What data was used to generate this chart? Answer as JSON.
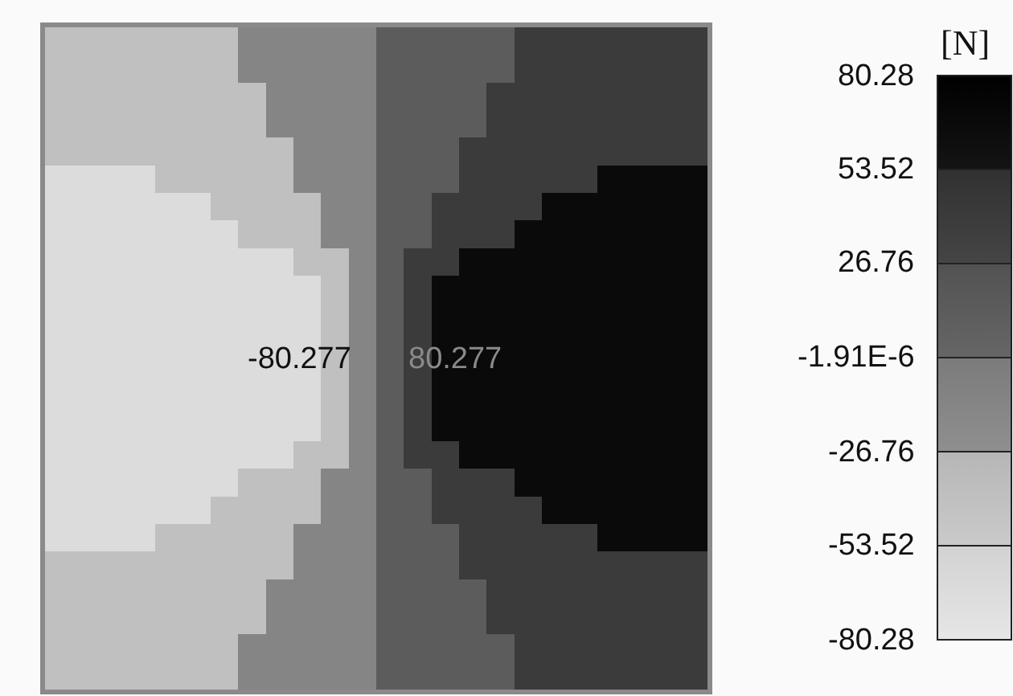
{
  "chart_data": {
    "type": "heatmap",
    "clabel": "[N]",
    "annotations": [
      "-80.277",
      "80.277"
    ],
    "categories": [
      null,
      null,
      null,
      null,
      null,
      null,
      null,
      null,
      null,
      null,
      null,
      null,
      null,
      null,
      null,
      null,
      null,
      null,
      null,
      null,
      null,
      null,
      null,
      null
    ],
    "y_categories": [
      null,
      null,
      null,
      null,
      null,
      null,
      null,
      null,
      null,
      null,
      null,
      null,
      null,
      null,
      null,
      null,
      null,
      null,
      null,
      null,
      null,
      null,
      null,
      null
    ],
    "tick_labels": false,
    "clim": [
      -80.28,
      80.28
    ],
    "cticks": [
      -80.28,
      -53.52,
      -26.76,
      {
        "value": -1.91e-06,
        "label": "-1.91E-6"
      },
      26.76,
      53.52,
      80.28
    ],
    "colors": [
      "#dcdcdc",
      "#c0c0c0",
      "#858585",
      "#5c5c5c",
      "#3b3b3b",
      "#000000"
    ],
    "cells": [
      [
        -40,
        -40,
        -40,
        -40,
        -40,
        -40,
        -40,
        -13,
        -13,
        -13,
        -13,
        -13,
        13,
        13,
        13,
        13,
        13,
        40,
        40,
        40,
        40,
        40,
        40,
        40
      ],
      [
        -40,
        -40,
        -40,
        -40,
        -40,
        -40,
        -40,
        -13,
        -13,
        -13,
        -13,
        -13,
        13,
        13,
        13,
        13,
        13,
        40,
        40,
        40,
        40,
        40,
        40,
        40
      ],
      [
        -40,
        -40,
        -40,
        -40,
        -40,
        -40,
        -40,
        -40,
        -13,
        -13,
        -13,
        -13,
        13,
        13,
        13,
        13,
        40,
        40,
        40,
        40,
        40,
        40,
        40,
        40
      ],
      [
        -40,
        -40,
        -40,
        -40,
        -40,
        -40,
        -40,
        -40,
        -13,
        -13,
        -13,
        -13,
        13,
        13,
        13,
        13,
        40,
        40,
        40,
        40,
        40,
        40,
        40,
        40
      ],
      [
        -40,
        -40,
        -40,
        -40,
        -40,
        -40,
        -40,
        -40,
        -40,
        -13,
        -13,
        -13,
        13,
        13,
        13,
        40,
        40,
        40,
        40,
        40,
        40,
        40,
        40,
        40
      ],
      [
        -67,
        -67,
        -67,
        -67,
        -40,
        -40,
        -40,
        -40,
        -40,
        -13,
        -13,
        -13,
        13,
        13,
        13,
        40,
        40,
        40,
        40,
        40,
        67,
        67,
        67,
        67
      ],
      [
        -67,
        -67,
        -67,
        -67,
        -67,
        -67,
        -40,
        -40,
        -40,
        -40,
        -13,
        -13,
        13,
        13,
        40,
        40,
        40,
        40,
        67,
        67,
        67,
        67,
        67,
        67
      ],
      [
        -67,
        -67,
        -67,
        -67,
        -67,
        -67,
        -67,
        -40,
        -40,
        -40,
        -13,
        -13,
        13,
        13,
        40,
        40,
        40,
        67,
        67,
        67,
        67,
        67,
        67,
        67
      ],
      [
        -67,
        -67,
        -67,
        -67,
        -67,
        -67,
        -67,
        -67,
        -67,
        -40,
        -40,
        -13,
        13,
        40,
        40,
        67,
        67,
        67,
        67,
        67,
        67,
        67,
        67,
        67
      ],
      [
        -67,
        -67,
        -67,
        -67,
        -67,
        -67,
        -67,
        -67,
        -67,
        -67,
        -40,
        -13,
        13,
        40,
        67,
        67,
        67,
        67,
        67,
        67,
        67,
        67,
        67,
        67
      ],
      [
        -67,
        -67,
        -67,
        -67,
        -67,
        -67,
        -67,
        -67,
        -67,
        -67,
        -40,
        -13,
        13,
        40,
        67,
        67,
        67,
        67,
        67,
        67,
        67,
        67,
        67,
        67
      ],
      [
        -67,
        -67,
        -67,
        -67,
        -67,
        -67,
        -67,
        -67,
        -67,
        -67,
        -40,
        -13,
        13,
        40,
        67,
        67,
        67,
        67,
        67,
        67,
        67,
        67,
        67,
        67
      ],
      [
        -67,
        -67,
        -67,
        -67,
        -67,
        -67,
        -67,
        -67,
        -67,
        -67,
        -40,
        -13,
        13,
        40,
        67,
        67,
        67,
        67,
        67,
        67,
        67,
        67,
        67,
        67
      ],
      [
        -67,
        -67,
        -67,
        -67,
        -67,
        -67,
        -67,
        -67,
        -67,
        -67,
        -40,
        -13,
        13,
        40,
        67,
        67,
        67,
        67,
        67,
        67,
        67,
        67,
        67,
        67
      ],
      [
        -67,
        -67,
        -67,
        -67,
        -67,
        -67,
        -67,
        -67,
        -67,
        -67,
        -40,
        -13,
        13,
        40,
        67,
        67,
        67,
        67,
        67,
        67,
        67,
        67,
        67,
        67
      ],
      [
        -67,
        -67,
        -67,
        -67,
        -67,
        -67,
        -67,
        -67,
        -67,
        -40,
        -40,
        -13,
        13,
        40,
        40,
        67,
        67,
        67,
        67,
        67,
        67,
        67,
        67,
        67
      ],
      [
        -67,
        -67,
        -67,
        -67,
        -67,
        -67,
        -67,
        -40,
        -40,
        -40,
        -13,
        -13,
        13,
        13,
        40,
        40,
        40,
        67,
        67,
        67,
        67,
        67,
        67,
        67
      ],
      [
        -67,
        -67,
        -67,
        -67,
        -67,
        -67,
        -40,
        -40,
        -40,
        -40,
        -13,
        -13,
        13,
        13,
        40,
        40,
        40,
        40,
        67,
        67,
        67,
        67,
        67,
        67
      ],
      [
        -67,
        -67,
        -67,
        -67,
        -40,
        -40,
        -40,
        -40,
        -40,
        -13,
        -13,
        -13,
        13,
        13,
        13,
        40,
        40,
        40,
        40,
        40,
        67,
        67,
        67,
        67
      ],
      [
        -40,
        -40,
        -40,
        -40,
        -40,
        -40,
        -40,
        -40,
        -40,
        -13,
        -13,
        -13,
        13,
        13,
        13,
        40,
        40,
        40,
        40,
        40,
        40,
        40,
        40,
        40
      ],
      [
        -40,
        -40,
        -40,
        -40,
        -40,
        -40,
        -40,
        -40,
        -13,
        -13,
        -13,
        -13,
        13,
        13,
        13,
        13,
        40,
        40,
        40,
        40,
        40,
        40,
        40,
        40
      ],
      [
        -40,
        -40,
        -40,
        -40,
        -40,
        -40,
        -40,
        -40,
        -13,
        -13,
        -13,
        -13,
        13,
        13,
        13,
        13,
        40,
        40,
        40,
        40,
        40,
        40,
        40,
        40
      ],
      [
        -40,
        -40,
        -40,
        -40,
        -40,
        -40,
        -40,
        -13,
        -13,
        -13,
        -13,
        -13,
        13,
        13,
        13,
        13,
        13,
        40,
        40,
        40,
        40,
        40,
        40,
        40
      ],
      [
        -40,
        -40,
        -40,
        -40,
        -40,
        -40,
        -40,
        -13,
        -13,
        -13,
        -13,
        -13,
        13,
        13,
        13,
        13,
        13,
        40,
        40,
        40,
        40,
        40,
        40,
        40
      ]
    ]
  }
}
